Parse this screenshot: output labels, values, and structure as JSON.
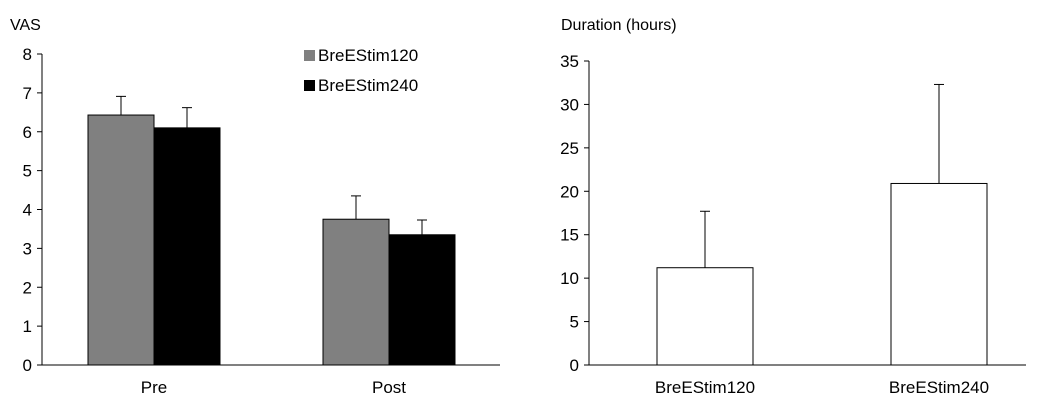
{
  "chart_data": [
    {
      "type": "bar",
      "ylabel": "VAS",
      "xlabel": "",
      "ylim": [
        0,
        8
      ],
      "yticks": [
        "0",
        "1",
        "2",
        "3",
        "4",
        "5",
        "6",
        "7",
        "8"
      ],
      "categories": [
        "Pre",
        "Post"
      ],
      "series": [
        {
          "name": "BreEStim120",
          "color": "#808080",
          "values": [
            6.43,
            3.75
          ],
          "errors": [
            0.48,
            0.6
          ]
        },
        {
          "name": "BreEStim240",
          "color": "#000000",
          "values": [
            6.1,
            3.35
          ],
          "errors": [
            0.52,
            0.38
          ]
        }
      ],
      "legend": "top-right",
      "grid": false
    },
    {
      "type": "bar",
      "ylabel": "Duration (hours)",
      "xlabel": "",
      "ylim": [
        0,
        35
      ],
      "yticks": [
        "0",
        "5",
        "10",
        "15",
        "20",
        "25",
        "30",
        "35"
      ],
      "categories": [
        "BreEStim120",
        "BreEStim240"
      ],
      "series": [
        {
          "name": "",
          "color": "#ffffff",
          "values": [
            11.2,
            20.9
          ],
          "errors": [
            6.5,
            11.4
          ]
        }
      ],
      "legend": "none",
      "grid": false
    }
  ]
}
